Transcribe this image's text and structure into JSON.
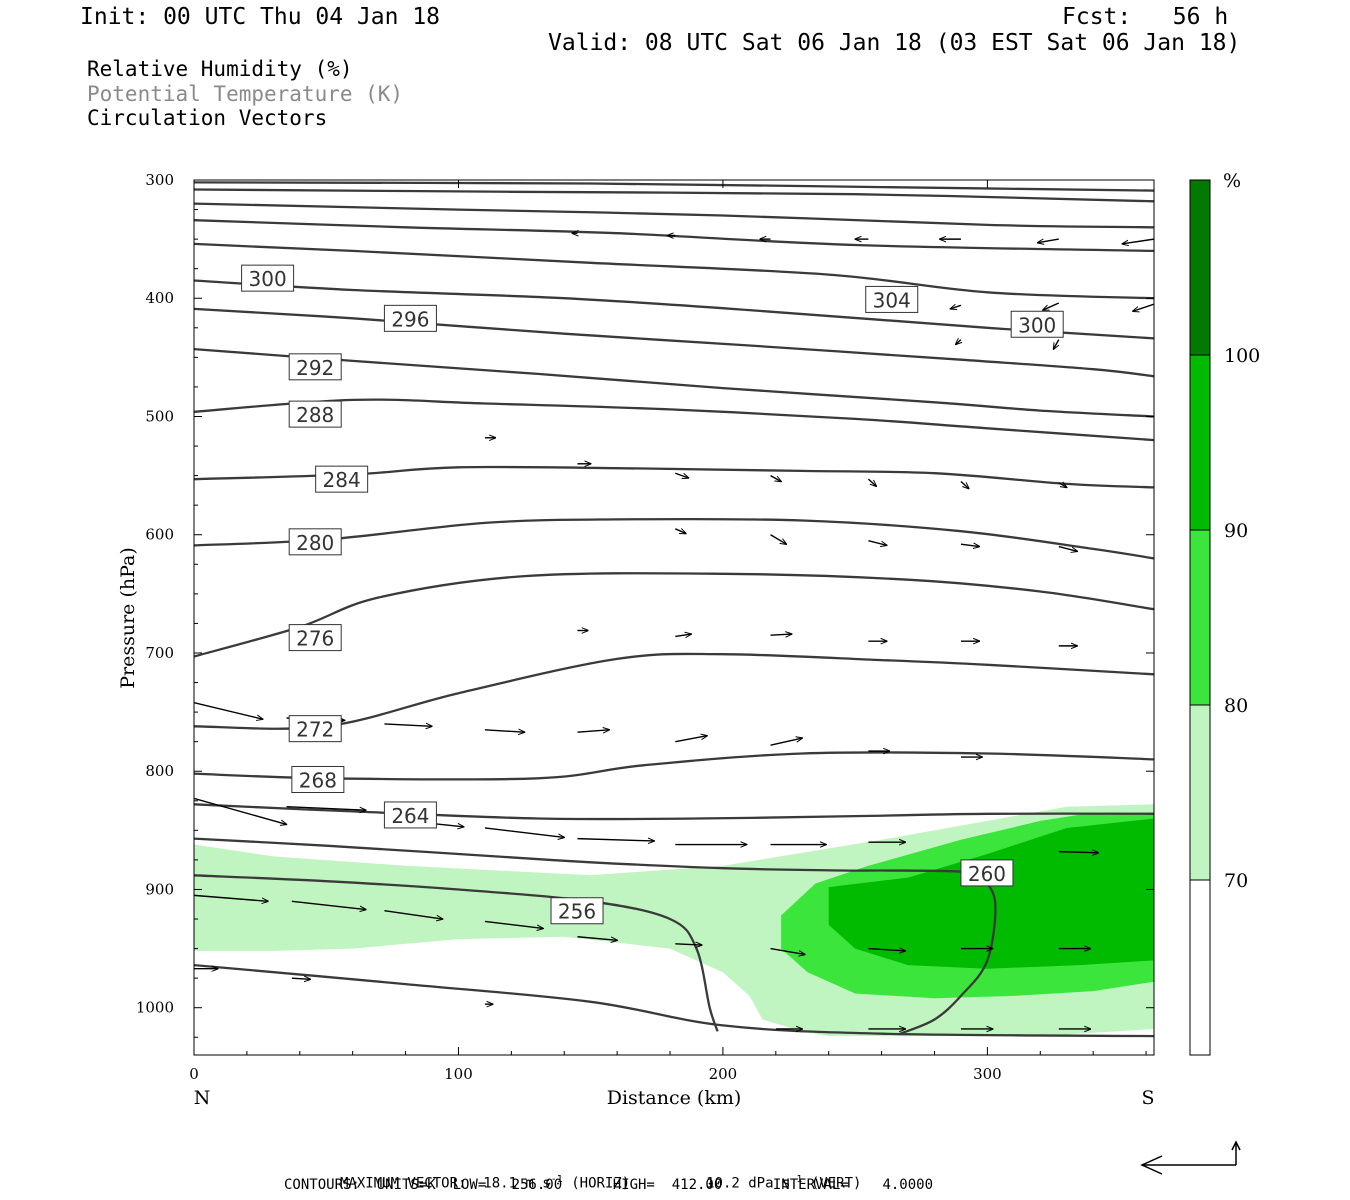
{
  "header": {
    "init": "Init: 00 UTC Thu 04 Jan 18",
    "fcst": "Fcst:   56 h",
    "valid": "Valid: 08 UTC Sat 06 Jan 18 (03 EST Sat 06 Jan 18)"
  },
  "legend": {
    "rh": "Relative Humidity (%)",
    "theta": "Potential Temperature (K)",
    "vectors": "Circulation Vectors"
  },
  "footer": {
    "max_vector_label": "MAXIMUM VECTOR:",
    "max_vector_horiz": "18.1 m s",
    "horiz_tag": "(HORIZ)",
    "max_vector_vert": "10.2 dPa s",
    "vert_tag": "(VERT)",
    "contours_line": "CONTOURS:  UNITS=K  LOW=   256.00      HIGH=  412.00      INTERVAL=    4.0000"
  },
  "chart_data": {
    "type": "contour_cross_section",
    "xlabel": "Distance (km)",
    "ylabel": "Pressure (hPa)",
    "x_ticks": [
      0,
      100,
      200,
      300
    ],
    "y_ticks": [
      300,
      400,
      500,
      600,
      700,
      800,
      900,
      1000
    ],
    "xlim": [
      0,
      363
    ],
    "ylim": [
      300,
      1040
    ],
    "endpoint_left": "N",
    "endpoint_right": "S",
    "colorbar": {
      "unit": "%",
      "levels": [
        70,
        80,
        90,
        100
      ],
      "colors": [
        "#ffffff",
        "#c0f4c0",
        "#3ce53c",
        "#00bb00",
        "#007a00"
      ]
    },
    "rh_fills": [
      {
        "level": 70,
        "color": "#c0f4c0",
        "points": [
          [
            0,
            862
          ],
          [
            30,
            872
          ],
          [
            80,
            880
          ],
          [
            150,
            888
          ],
          [
            200,
            880
          ],
          [
            260,
            858
          ],
          [
            300,
            842
          ],
          [
            330,
            830
          ],
          [
            363,
            828
          ],
          [
            363,
            1018
          ],
          [
            320,
            1024
          ],
          [
            240,
            1024
          ],
          [
            230,
            1020
          ],
          [
            215,
            1010
          ],
          [
            210,
            990
          ],
          [
            200,
            970
          ],
          [
            180,
            950
          ],
          [
            140,
            940
          ],
          [
            100,
            942
          ],
          [
            60,
            950
          ],
          [
            30,
            952
          ],
          [
            0,
            952
          ]
        ]
      },
      {
        "level": 80,
        "color": "#3ce53c",
        "points": [
          [
            222,
            922
          ],
          [
            235,
            895
          ],
          [
            255,
            880
          ],
          [
            290,
            858
          ],
          [
            320,
            842
          ],
          [
            340,
            835
          ],
          [
            363,
            835
          ],
          [
            363,
            978
          ],
          [
            340,
            986
          ],
          [
            310,
            990
          ],
          [
            280,
            992
          ],
          [
            250,
            988
          ],
          [
            232,
            970
          ],
          [
            222,
            950
          ]
        ]
      },
      {
        "level": 90,
        "color": "#00bb00",
        "points": [
          [
            240,
            898
          ],
          [
            270,
            890
          ],
          [
            300,
            870
          ],
          [
            330,
            848
          ],
          [
            363,
            840
          ],
          [
            363,
            960
          ],
          [
            335,
            964
          ],
          [
            300,
            967
          ],
          [
            270,
            964
          ],
          [
            250,
            950
          ],
          [
            240,
            930
          ]
        ]
      }
    ],
    "theta_contours": [
      {
        "label": "256",
        "label_at": [
          135,
          918
        ],
        "points": [
          [
            0,
            888
          ],
          [
            50,
            893
          ],
          [
            100,
            900
          ],
          [
            150,
            910
          ],
          [
            180,
            925
          ],
          [
            190,
            950
          ],
          [
            195,
            1000
          ],
          [
            198,
            1020
          ]
        ]
      },
      {
        "label": "260",
        "label_at": [
          290,
          886
        ],
        "points": [
          [
            0,
            857
          ],
          [
            50,
            863
          ],
          [
            100,
            870
          ],
          [
            150,
            877
          ],
          [
            200,
            882
          ],
          [
            245,
            884
          ],
          [
            260,
            884
          ],
          [
            290,
            885
          ],
          [
            298,
            891
          ],
          [
            303,
            912
          ],
          [
            300,
            960
          ],
          [
            290,
            990
          ],
          [
            280,
            1010
          ],
          [
            267,
            1022
          ]
        ]
      },
      {
        "label": "264",
        "label_at": [
          72,
          837
        ],
        "points": [
          [
            0,
            828
          ],
          [
            60,
            834
          ],
          [
            130,
            840
          ],
          [
            190,
            840
          ],
          [
            250,
            838
          ],
          [
            300,
            836
          ],
          [
            363,
            836
          ]
        ]
      },
      {
        "label": "268",
        "label_at": [
          37,
          807
        ],
        "points": [
          [
            0,
            802
          ],
          [
            50,
            806
          ],
          [
            130,
            806
          ],
          [
            170,
            795
          ],
          [
            230,
            785
          ],
          [
            300,
            785
          ],
          [
            363,
            790
          ]
        ]
      },
      {
        "label": "272",
        "label_at": [
          36,
          764
        ],
        "points": [
          [
            0,
            762
          ],
          [
            50,
            762
          ],
          [
            100,
            734
          ],
          [
            160,
            705
          ],
          [
            200,
            701
          ],
          [
            260,
            706
          ],
          [
            300,
            710
          ],
          [
            363,
            718
          ]
        ]
      },
      {
        "label": "276",
        "label_at": [
          36,
          687
        ],
        "points": [
          [
            0,
            703
          ],
          [
            40,
            678
          ],
          [
            70,
            653
          ],
          [
            125,
            635
          ],
          [
            200,
            633
          ],
          [
            270,
            638
          ],
          [
            320,
            648
          ],
          [
            363,
            663
          ]
        ]
      },
      {
        "label": "280",
        "label_at": [
          36,
          606
        ],
        "points": [
          [
            0,
            609
          ],
          [
            50,
            604
          ],
          [
            110,
            590
          ],
          [
            160,
            587
          ],
          [
            230,
            588
          ],
          [
            290,
            597
          ],
          [
            340,
            612
          ],
          [
            363,
            620
          ]
        ]
      },
      {
        "label": "284",
        "label_at": [
          46,
          553
        ],
        "points": [
          [
            0,
            553
          ],
          [
            60,
            549
          ],
          [
            100,
            543
          ],
          [
            170,
            544
          ],
          [
            230,
            546
          ],
          [
            280,
            548
          ],
          [
            330,
            557
          ],
          [
            363,
            560
          ]
        ]
      },
      {
        "label": "288",
        "label_at": [
          36,
          498
        ],
        "points": [
          [
            0,
            496
          ],
          [
            60,
            486
          ],
          [
            110,
            489
          ],
          [
            180,
            494
          ],
          [
            250,
            502
          ],
          [
            300,
            510
          ],
          [
            363,
            520
          ]
        ]
      },
      {
        "label": "292",
        "label_at": [
          36,
          458
        ],
        "points": [
          [
            0,
            443
          ],
          [
            60,
            453
          ],
          [
            130,
            464
          ],
          [
            200,
            476
          ],
          [
            280,
            488
          ],
          [
            320,
            495
          ],
          [
            363,
            500
          ]
        ]
      },
      {
        "label": "296",
        "label_at": [
          72,
          417
        ],
        "points": [
          [
            0,
            409
          ],
          [
            60,
            417
          ],
          [
            140,
            430
          ],
          [
            210,
            440
          ],
          [
            290,
            452
          ],
          [
            340,
            460
          ],
          [
            363,
            466
          ]
        ]
      },
      {
        "label": "300",
        "label_at": [
          18,
          383
        ],
        "points": [
          [
            0,
            385
          ],
          [
            60,
            393
          ],
          [
            140,
            400
          ],
          [
            210,
            410
          ],
          [
            300,
            425
          ],
          [
            363,
            434
          ]
        ]
      },
      {
        "label": "300",
        "label_at": [
          309,
          422
        ],
        "points": []
      },
      {
        "label": "304",
        "label_at": [
          254,
          401
        ],
        "points": [
          [
            0,
            354
          ],
          [
            60,
            360
          ],
          [
            150,
            370
          ],
          [
            240,
            380
          ],
          [
            300,
            395
          ],
          [
            363,
            400
          ]
        ]
      },
      {
        "label": "",
        "label_at": null,
        "points": [
          [
            0,
            334
          ],
          [
            80,
            340
          ],
          [
            160,
            345
          ],
          [
            250,
            355
          ],
          [
            363,
            360
          ]
        ]
      },
      {
        "label": "",
        "label_at": null,
        "points": [
          [
            0,
            320
          ],
          [
            100,
            325
          ],
          [
            200,
            330
          ],
          [
            300,
            338
          ],
          [
            363,
            340
          ]
        ]
      },
      {
        "label": "",
        "label_at": null,
        "points": [
          [
            0,
            308
          ],
          [
            120,
            310
          ],
          [
            250,
            312
          ],
          [
            363,
            318
          ]
        ]
      },
      {
        "label": "",
        "label_at": null,
        "points": [
          [
            0,
            302
          ],
          [
            150,
            303
          ],
          [
            260,
            306
          ],
          [
            363,
            309
          ]
        ]
      },
      {
        "label": "",
        "label_at": null,
        "points": [
          [
            0,
            964
          ],
          [
            80,
            980
          ],
          [
            150,
            995
          ],
          [
            200,
            1015
          ],
          [
            260,
            1022
          ],
          [
            363,
            1024
          ]
        ]
      }
    ],
    "vectors": [
      {
        "x": 0,
        "p": 742,
        "dx": 26,
        "dp": 14
      },
      {
        "x": 35,
        "p": 755,
        "dx": 22,
        "dp": 2
      },
      {
        "x": 72,
        "p": 760,
        "dx": 18,
        "dp": 2
      },
      {
        "x": 110,
        "p": 765,
        "dx": 15,
        "dp": 2
      },
      {
        "x": 145,
        "p": 767,
        "dx": 12,
        "dp": -2
      },
      {
        "x": 182,
        "p": 775,
        "dx": 12,
        "dp": -5
      },
      {
        "x": 218,
        "p": 778,
        "dx": 12,
        "dp": -6
      },
      {
        "x": 255,
        "p": 783,
        "dx": 8,
        "dp": 0
      },
      {
        "x": 290,
        "p": 788,
        "dx": 8,
        "dp": 0
      },
      {
        "x": 0,
        "p": 823,
        "dx": 35,
        "dp": 22
      },
      {
        "x": 35,
        "p": 830,
        "dx": 30,
        "dp": 3
      },
      {
        "x": 72,
        "p": 840,
        "dx": 30,
        "dp": 7
      },
      {
        "x": 110,
        "p": 848,
        "dx": 30,
        "dp": 8
      },
      {
        "x": 145,
        "p": 857,
        "dx": 29,
        "dp": 2
      },
      {
        "x": 182,
        "p": 862,
        "dx": 27,
        "dp": 0
      },
      {
        "x": 218,
        "p": 862,
        "dx": 21,
        "dp": 0
      },
      {
        "x": 255,
        "p": 860,
        "dx": 14,
        "dp": 0
      },
      {
        "x": 327,
        "p": 868,
        "dx": 15,
        "dp": 1
      },
      {
        "x": 0,
        "p": 905,
        "dx": 28,
        "dp": 5
      },
      {
        "x": 37,
        "p": 910,
        "dx": 28,
        "dp": 7
      },
      {
        "x": 72,
        "p": 918,
        "dx": 22,
        "dp": 7
      },
      {
        "x": 110,
        "p": 927,
        "dx": 22,
        "dp": 6
      },
      {
        "x": 145,
        "p": 940,
        "dx": 15,
        "dp": 3
      },
      {
        "x": 182,
        "p": 946,
        "dx": 10,
        "dp": 1
      },
      {
        "x": 218,
        "p": 950,
        "dx": 13,
        "dp": 5
      },
      {
        "x": 255,
        "p": 950,
        "dx": 14,
        "dp": 2
      },
      {
        "x": 290,
        "p": 950,
        "dx": 12,
        "dp": 0
      },
      {
        "x": 327,
        "p": 950,
        "dx": 12,
        "dp": 0
      },
      {
        "x": 0,
        "p": 967,
        "dx": 9,
        "dp": 0
      },
      {
        "x": 37,
        "p": 975,
        "dx": 7,
        "dp": 1
      },
      {
        "x": 110,
        "p": 997,
        "dx": 3,
        "dp": 0
      },
      {
        "x": 220,
        "p": 1018,
        "dx": 10,
        "dp": 0
      },
      {
        "x": 255,
        "p": 1018,
        "dx": 14,
        "dp": 0
      },
      {
        "x": 290,
        "p": 1018,
        "dx": 12,
        "dp": 0
      },
      {
        "x": 327,
        "p": 1018,
        "dx": 12,
        "dp": 0
      },
      {
        "x": 145,
        "p": 540,
        "dx": 5,
        "dp": 0
      },
      {
        "x": 182,
        "p": 548,
        "dx": 5,
        "dp": 4
      },
      {
        "x": 218,
        "p": 550,
        "dx": 4,
        "dp": 5
      },
      {
        "x": 255,
        "p": 553,
        "dx": 3,
        "dp": 6
      },
      {
        "x": 290,
        "p": 555,
        "dx": 3,
        "dp": 6
      },
      {
        "x": 327,
        "p": 556,
        "dx": 3,
        "dp": 4
      },
      {
        "x": 110,
        "p": 518,
        "dx": 4,
        "dp": 0
      },
      {
        "x": 182,
        "p": 595,
        "dx": 4,
        "dp": 4
      },
      {
        "x": 218,
        "p": 600,
        "dx": 6,
        "dp": 8
      },
      {
        "x": 255,
        "p": 605,
        "dx": 7,
        "dp": 4
      },
      {
        "x": 290,
        "p": 608,
        "dx": 7,
        "dp": 2
      },
      {
        "x": 327,
        "p": 610,
        "dx": 7,
        "dp": 4
      },
      {
        "x": 182,
        "p": 686,
        "dx": 6,
        "dp": -2
      },
      {
        "x": 218,
        "p": 685,
        "dx": 8,
        "dp": -1
      },
      {
        "x": 255,
        "p": 690,
        "dx": 7,
        "dp": 0
      },
      {
        "x": 290,
        "p": 690,
        "dx": 7,
        "dp": 0
      },
      {
        "x": 327,
        "p": 694,
        "dx": 7,
        "dp": 0
      },
      {
        "x": 145,
        "p": 681,
        "dx": 4,
        "dp": 0
      },
      {
        "x": 290,
        "p": 435,
        "dx": -2,
        "dp": 4
      },
      {
        "x": 327,
        "p": 435,
        "dx": -2,
        "dp": 8
      },
      {
        "x": 363,
        "p": 405,
        "dx": -8,
        "dp": 6
      },
      {
        "x": 327,
        "p": 404,
        "dx": -6,
        "dp": 6
      },
      {
        "x": 290,
        "p": 406,
        "dx": -4,
        "dp": 3
      },
      {
        "x": 290,
        "p": 350,
        "dx": -8,
        "dp": 0
      },
      {
        "x": 327,
        "p": 350,
        "dx": -8,
        "dp": 3
      },
      {
        "x": 363,
        "p": 350,
        "dx": -12,
        "dp": 4
      },
      {
        "x": 218,
        "p": 350,
        "dx": -4,
        "dp": 0
      },
      {
        "x": 255,
        "p": 350,
        "dx": -5,
        "dp": 0
      },
      {
        "x": 182,
        "p": 347,
        "dx": -3,
        "dp": 0
      },
      {
        "x": 145,
        "p": 345,
        "dx": -2,
        "dp": 0
      }
    ]
  }
}
